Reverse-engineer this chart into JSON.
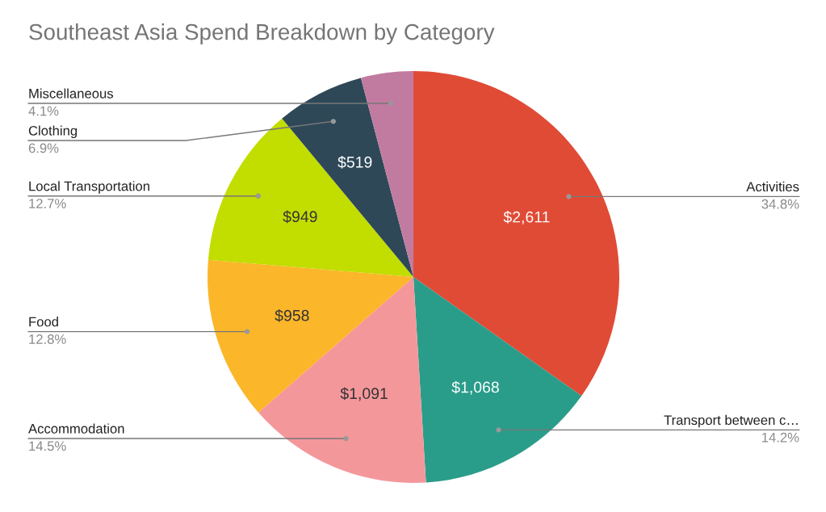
{
  "chart_data": {
    "type": "pie",
    "title": "Southeast Asia Spend Breakdown by Category",
    "categories": [
      "Activities",
      "Transport between c…",
      "Accommodation",
      "Food",
      "Local Transportation",
      "Clothing",
      "Miscellaneous"
    ],
    "values": [
      2611,
      1068,
      1091,
      958,
      949,
      519,
      308
    ],
    "colors": [
      "#e04b36",
      "#2a9d8a",
      "#f4979b",
      "#fbb62a",
      "#c2dd00",
      "#2e4858",
      "#c27ba0"
    ],
    "value_labels": [
      "$2,611",
      "$1,068",
      "$1,091",
      "$958",
      "$949",
      "$519",
      null
    ],
    "annotations": [
      "34.8%",
      "14.2%",
      "14.5%",
      "12.8%",
      "12.7%",
      "6.9%",
      "4.1%"
    ]
  }
}
